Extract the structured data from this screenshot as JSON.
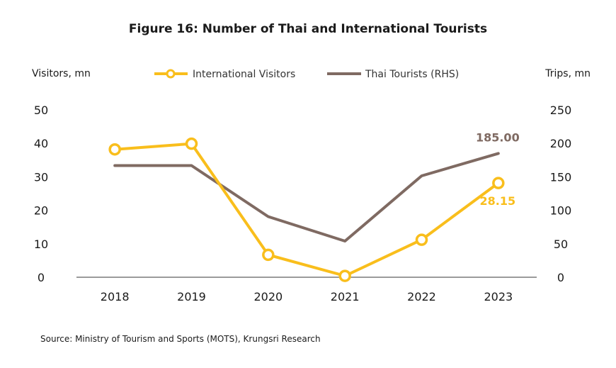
{
  "chart_data": {
    "type": "line",
    "title": "Figure 16: Number of Thai and International Tourists",
    "categories": [
      "2018",
      "2019",
      "2020",
      "2021",
      "2022",
      "2023"
    ],
    "y_left": {
      "label": "Visitors, mn",
      "range": [
        0,
        50
      ],
      "ticks": [
        "0",
        "10",
        "20",
        "30",
        "40",
        "50"
      ]
    },
    "y_right": {
      "label": "Trips, mn",
      "range": [
        0,
        250
      ],
      "ticks": [
        "0",
        "50",
        "100",
        "150",
        "200",
        "250"
      ]
    },
    "grid": false,
    "legend_position": "top-center",
    "series": [
      {
        "name": "International Visitors",
        "axis": "left",
        "color": "#F9BE1C",
        "marker": "hollow-circle",
        "values": [
          38.2,
          39.9,
          6.7,
          0.4,
          11.2,
          28.15
        ]
      },
      {
        "name": "Thai Tourists (RHS)",
        "axis": "right",
        "color": "#7F6A62",
        "marker": "none",
        "values": [
          166.8,
          166.8,
          90.6,
          54.0,
          151.5,
          185.0
        ]
      }
    ],
    "annotations": [
      {
        "series": 0,
        "index": 5,
        "text": "28.15"
      },
      {
        "series": 1,
        "index": 5,
        "text": "185.00"
      }
    ],
    "source": "Source: Ministry of Tourism and Sports (MOTS), Krungsri Research"
  }
}
